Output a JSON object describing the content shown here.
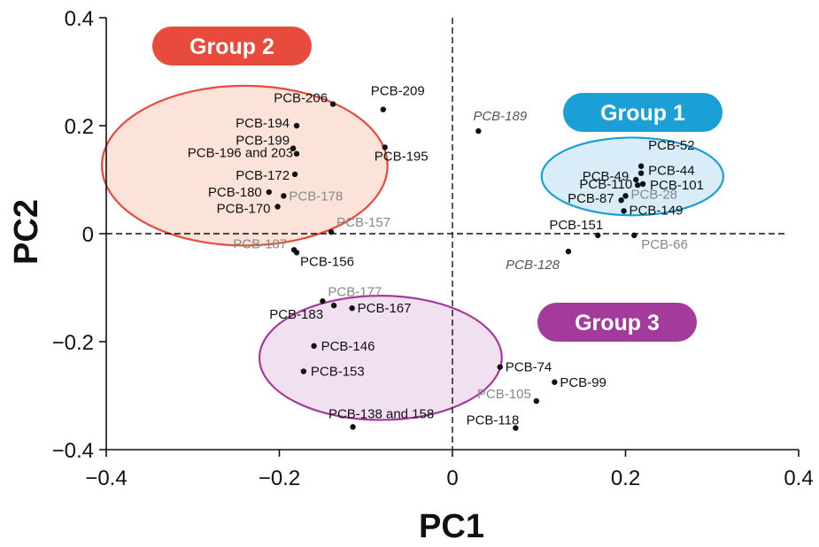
{
  "chart_data": {
    "type": "scatter",
    "xlabel": "PC1",
    "ylabel": "PC2",
    "xlim": [
      -0.4,
      0.4
    ],
    "ylim": [
      -0.4,
      0.4
    ],
    "xticks": [
      -0.4,
      -0.2,
      0,
      0.2,
      0.4
    ],
    "yticks": [
      -0.4,
      -0.2,
      0,
      0.2,
      0.4
    ],
    "xtick_labels": [
      "−0.4",
      "−0.2",
      "0",
      "0.2",
      "0.4"
    ],
    "ytick_labels": [
      "−0.4",
      "−0.2",
      "0",
      "0.2",
      "0.4"
    ],
    "zero_lines": "dashed",
    "grid": false,
    "colors": {
      "group1": "#1a9fd6",
      "group1_fill": "#d9edf8",
      "group2": "#e84a3c",
      "group2_fill": "#fbe3d9",
      "group3": "#a43b9c",
      "group3_fill": "#f1e0ef",
      "label_dark": "#111111",
      "label_gray": "#888888",
      "label_italic": "#555555"
    },
    "groups": [
      {
        "name": "Group 1",
        "center": [
          0.208,
          0.106
        ],
        "radii": [
          0.105,
          0.072
        ],
        "color": "group1",
        "fill": "group1_fill"
      },
      {
        "name": "Group 2",
        "center": [
          -0.24,
          0.126
        ],
        "radii": [
          0.165,
          0.148
        ],
        "color": "group2",
        "fill": "group2_fill"
      },
      {
        "name": "Group 3",
        "center": [
          -0.083,
          -0.23
        ],
        "radii": [
          0.14,
          0.115
        ],
        "color": "group3",
        "fill": "group3_fill"
      }
    ],
    "points": [
      {
        "label": "PCB-206",
        "x": -0.138,
        "y": 0.24,
        "style": "dark"
      },
      {
        "label": "PCB-209",
        "x": -0.08,
        "y": 0.23,
        "style": "dark"
      },
      {
        "label": "PCB-194",
        "x": -0.18,
        "y": 0.2,
        "style": "dark"
      },
      {
        "label": "PCB-199",
        "x": -0.184,
        "y": 0.158,
        "style": "dark"
      },
      {
        "label": "PCB-196 and 203",
        "x": -0.18,
        "y": 0.148,
        "style": "dark"
      },
      {
        "label": "PCB-195",
        "x": -0.078,
        "y": 0.16,
        "style": "dark"
      },
      {
        "label": "PCB-172",
        "x": -0.182,
        "y": 0.11,
        "style": "dark"
      },
      {
        "label": "PCB-180",
        "x": -0.212,
        "y": 0.077,
        "style": "dark"
      },
      {
        "label": "PCB-178",
        "x": -0.195,
        "y": 0.07,
        "style": "gray"
      },
      {
        "label": "PCB-170",
        "x": -0.202,
        "y": 0.05,
        "style": "dark"
      },
      {
        "label": "PCB-157",
        "x": -0.14,
        "y": 0.003,
        "style": "gray"
      },
      {
        "label": "PCB-187",
        "x": -0.183,
        "y": -0.03,
        "style": "gray"
      },
      {
        "label": "PCB-156",
        "x": -0.18,
        "y": -0.035,
        "style": "dark"
      },
      {
        "label": "PCB-189",
        "x": 0.03,
        "y": 0.19,
        "style": "italic"
      },
      {
        "label": "PCB-128",
        "x": 0.134,
        "y": -0.033,
        "style": "italic"
      },
      {
        "label": "PCB-52",
        "x": 0.218,
        "y": 0.125,
        "style": "dark"
      },
      {
        "label": "PCB-44",
        "x": 0.218,
        "y": 0.112,
        "style": "dark"
      },
      {
        "label": "PCB-49",
        "x": 0.212,
        "y": 0.1,
        "style": "dark"
      },
      {
        "label": "PCB-110",
        "x": 0.214,
        "y": 0.09,
        "style": "dark"
      },
      {
        "label": "PCB-101",
        "x": 0.22,
        "y": 0.092,
        "style": "dark"
      },
      {
        "label": "PCB-28",
        "x": 0.2,
        "y": 0.07,
        "style": "gray"
      },
      {
        "label": "PCB-87",
        "x": 0.195,
        "y": 0.062,
        "style": "dark"
      },
      {
        "label": "PCB-149",
        "x": 0.198,
        "y": 0.042,
        "style": "dark"
      },
      {
        "label": "PCB-151",
        "x": 0.168,
        "y": -0.003,
        "style": "dark"
      },
      {
        "label": "PCB-66",
        "x": 0.21,
        "y": -0.003,
        "style": "gray"
      },
      {
        "label": "PCB-177",
        "x": -0.15,
        "y": -0.125,
        "style": "gray"
      },
      {
        "label": "PCB-183",
        "x": -0.137,
        "y": -0.133,
        "style": "dark"
      },
      {
        "label": "PCB-167",
        "x": -0.116,
        "y": -0.138,
        "style": "dark"
      },
      {
        "label": "PCB-146",
        "x": -0.16,
        "y": -0.208,
        "style": "dark"
      },
      {
        "label": "PCB-153",
        "x": -0.172,
        "y": -0.255,
        "style": "dark"
      },
      {
        "label": "PCB-138 and 158",
        "x": -0.115,
        "y": -0.358,
        "style": "dark"
      },
      {
        "label": "PCB-74",
        "x": 0.055,
        "y": -0.247,
        "style": "dark"
      },
      {
        "label": "PCB-99",
        "x": 0.118,
        "y": -0.275,
        "style": "dark"
      },
      {
        "label": "PCB-105",
        "x": 0.097,
        "y": -0.31,
        "style": "gray"
      },
      {
        "label": "PCB-118",
        "x": 0.073,
        "y": -0.36,
        "style": "dark"
      }
    ]
  }
}
